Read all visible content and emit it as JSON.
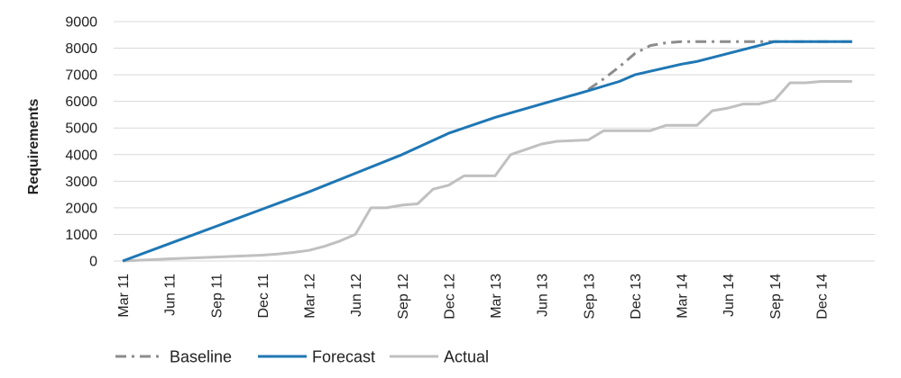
{
  "chart_data": {
    "type": "line",
    "title": "",
    "xlabel": "",
    "ylabel": "Requirements",
    "ylim": [
      0,
      9000
    ],
    "y_ticks": [
      "0",
      "1000",
      "2000",
      "3000",
      "4000",
      "5000",
      "6000",
      "7000",
      "8000",
      "9000"
    ],
    "x": [
      "Mar 11",
      "Jun 11",
      "Sep 11",
      "Dec 11",
      "Mar 12",
      "Jun 12",
      "Sep 12",
      "Dec 12",
      "Mar 13",
      "Jun 13",
      "Sep 13",
      "Dec 13",
      "Mar 14",
      "Jun 14",
      "Sep 14",
      "Dec 14"
    ],
    "xlim": [
      "Mar 11",
      "Mar 15"
    ],
    "grid": {
      "horizontal": true,
      "vertical": false
    },
    "legend_position": "bottom-left",
    "series": [
      {
        "name": "Baseline",
        "color": "#8c8c8c",
        "style": "dash-dot",
        "points": [
          [
            "2013-09-01",
            6450
          ],
          [
            "2013-10-01",
            6850
          ],
          [
            "2013-11-01",
            7300
          ],
          [
            "2013-12-01",
            7800
          ],
          [
            "2014-01-01",
            8100
          ],
          [
            "2014-02-01",
            8200
          ],
          [
            "2014-03-01",
            8250
          ],
          [
            "2014-04-01",
            8250
          ],
          [
            "2014-05-01",
            8250
          ],
          [
            "2014-06-01",
            8250
          ],
          [
            "2014-07-01",
            8250
          ],
          [
            "2014-08-01",
            8250
          ],
          [
            "2014-09-01",
            8250
          ],
          [
            "2014-10-01",
            8250
          ],
          [
            "2014-11-01",
            8250
          ],
          [
            "2014-12-01",
            8250
          ],
          [
            "2015-01-01",
            8250
          ],
          [
            "2015-02-01",
            8250
          ]
        ]
      },
      {
        "name": "Forecast",
        "color": "#1f77b4",
        "style": "solid",
        "points": [
          [
            "2011-03-01",
            0
          ],
          [
            "2011-06-01",
            650
          ],
          [
            "2011-09-01",
            1300
          ],
          [
            "2011-12-01",
            1950
          ],
          [
            "2012-03-01",
            2600
          ],
          [
            "2012-06-01",
            3300
          ],
          [
            "2012-09-01",
            4000
          ],
          [
            "2012-12-01",
            4800
          ],
          [
            "2013-03-01",
            5400
          ],
          [
            "2013-06-01",
            5900
          ],
          [
            "2013-09-01",
            6400
          ],
          [
            "2013-11-01",
            6750
          ],
          [
            "2013-12-01",
            7000
          ],
          [
            "2014-03-01",
            7400
          ],
          [
            "2014-04-01",
            7500
          ],
          [
            "2014-09-01",
            8250
          ],
          [
            "2015-02-01",
            8250
          ]
        ]
      },
      {
        "name": "Actual",
        "color": "#c0c0c0",
        "style": "solid",
        "points": [
          [
            "2011-03-01",
            0
          ],
          [
            "2011-06-01",
            80
          ],
          [
            "2011-09-01",
            150
          ],
          [
            "2011-12-01",
            220
          ],
          [
            "2012-01-01",
            260
          ],
          [
            "2012-02-01",
            320
          ],
          [
            "2012-03-01",
            400
          ],
          [
            "2012-04-01",
            550
          ],
          [
            "2012-05-01",
            750
          ],
          [
            "2012-06-01",
            1000
          ],
          [
            "2012-07-01",
            2000
          ],
          [
            "2012-08-01",
            2000
          ],
          [
            "2012-09-01",
            2100
          ],
          [
            "2012-10-01",
            2150
          ],
          [
            "2012-11-01",
            2700
          ],
          [
            "2012-12-01",
            2850
          ],
          [
            "2013-01-01",
            3200
          ],
          [
            "2013-03-01",
            3200
          ],
          [
            "2013-04-01",
            4000
          ],
          [
            "2013-05-01",
            4200
          ],
          [
            "2013-06-01",
            4400
          ],
          [
            "2013-07-01",
            4500
          ],
          [
            "2013-09-01",
            4550
          ],
          [
            "2013-10-01",
            4900
          ],
          [
            "2013-12-01",
            4900
          ],
          [
            "2014-01-01",
            4900
          ],
          [
            "2014-02-01",
            5100
          ],
          [
            "2014-04-01",
            5100
          ],
          [
            "2014-05-01",
            5650
          ],
          [
            "2014-06-01",
            5750
          ],
          [
            "2014-07-01",
            5900
          ],
          [
            "2014-08-01",
            5900
          ],
          [
            "2014-09-01",
            6050
          ],
          [
            "2014-10-01",
            6700
          ],
          [
            "2014-11-01",
            6700
          ],
          [
            "2014-12-01",
            6750
          ],
          [
            "2015-02-01",
            6750
          ]
        ]
      }
    ]
  }
}
